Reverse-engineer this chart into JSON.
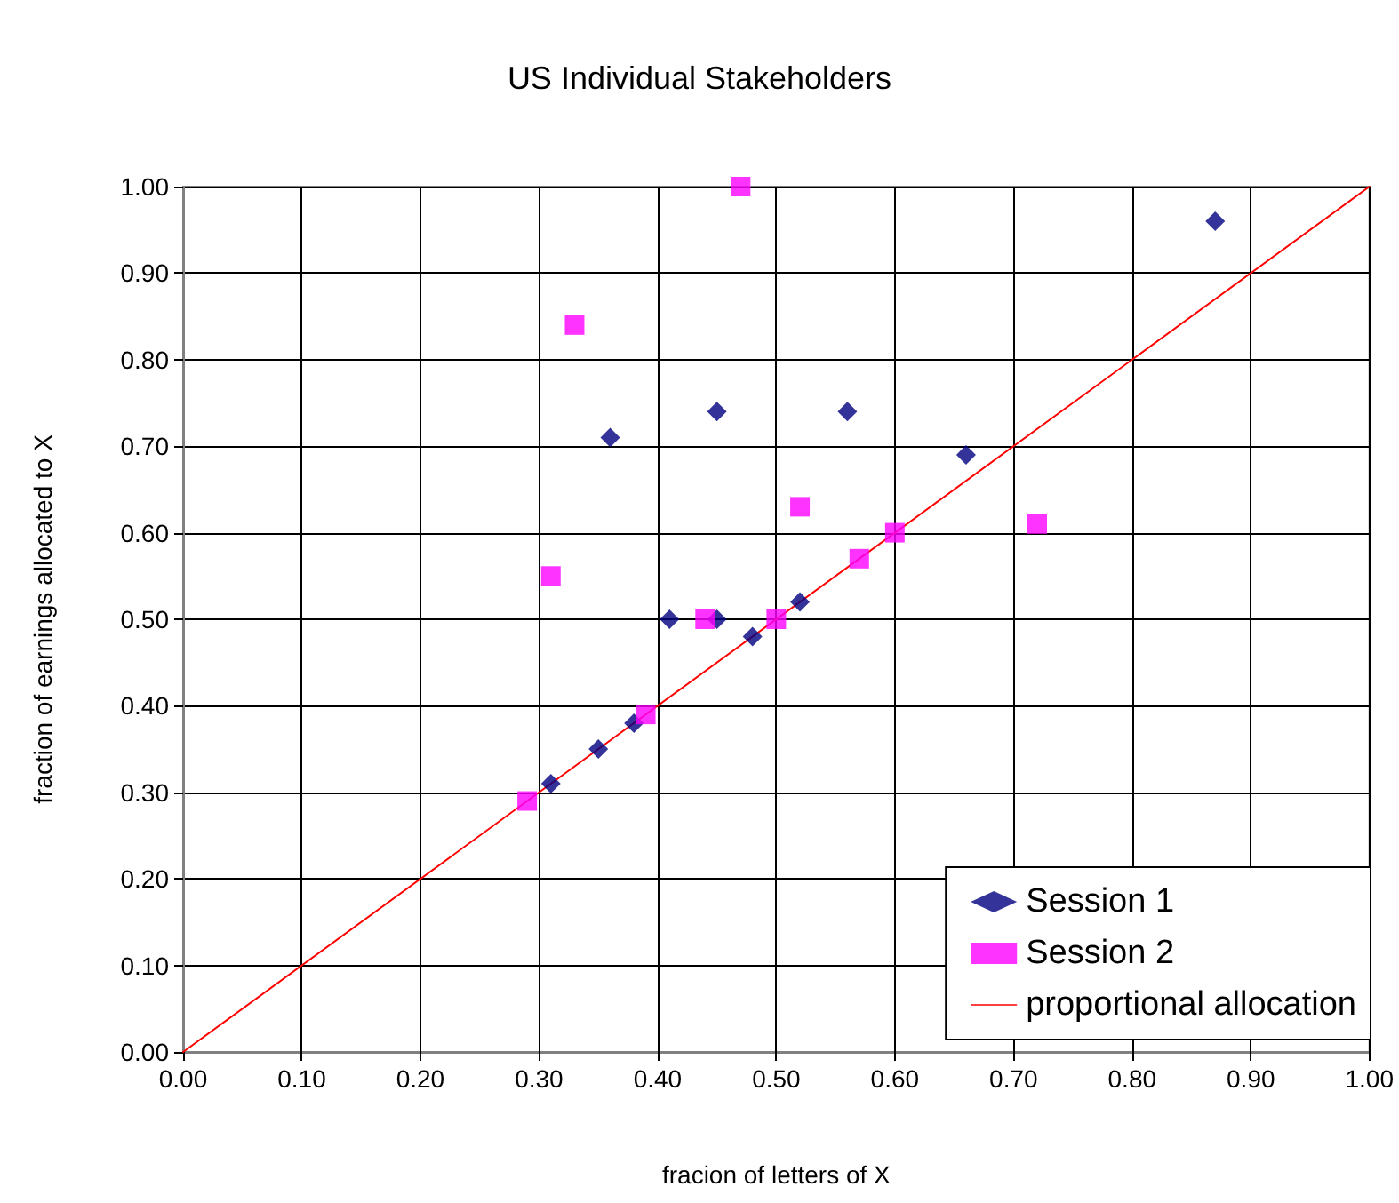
{
  "chart_data": {
    "type": "scatter",
    "title": "US Individual Stakeholders",
    "xlabel": "fracion of letters of X",
    "ylabel": "fraction of earnings allocated to X",
    "series": [
      {
        "name": "Session 1",
        "color": "#000080",
        "marker": "diamond",
        "x": [
          0.31,
          0.35,
          0.38,
          0.41,
          0.45,
          0.48,
          0.52,
          0.36,
          0.45,
          0.56,
          0.66,
          0.87
        ],
        "values": [
          0.31,
          0.35,
          0.38,
          0.5,
          0.5,
          0.48,
          0.52,
          0.71,
          0.74,
          0.74,
          0.69,
          0.96
        ]
      },
      {
        "name": "Session 2",
        "color": "#ff00ff",
        "marker": "square",
        "x": [
          0.29,
          0.31,
          0.39,
          0.44,
          0.5,
          0.57,
          0.47,
          0.33,
          0.52,
          0.6,
          0.72
        ],
        "values": [
          0.29,
          0.55,
          0.39,
          0.5,
          0.5,
          0.57,
          1.0,
          0.84,
          0.63,
          0.6,
          0.61
        ]
      },
      {
        "name": "proportional allocation",
        "type": "line",
        "color": "#ff0000",
        "marker": "none",
        "line_style": "solid",
        "x": [
          0,
          1
        ],
        "values": [
          0,
          1
        ]
      }
    ],
    "xlim": [
      0,
      1
    ],
    "ylim": [
      0,
      1
    ],
    "xticks": [
      {
        "value": 0,
        "label": "0.00"
      },
      {
        "value": 0.1,
        "label": "0.10"
      },
      {
        "value": 0.2,
        "label": "0.20"
      },
      {
        "value": 0.3,
        "label": "0.30"
      },
      {
        "value": 0.4,
        "label": "0.40"
      },
      {
        "value": 0.5,
        "label": "0.50"
      },
      {
        "value": 0.6,
        "label": "0.60"
      },
      {
        "value": 0.7,
        "label": "0.70"
      },
      {
        "value": 0.8,
        "label": "0.80"
      },
      {
        "value": 0.9,
        "label": "0.90"
      },
      {
        "value": 1,
        "label": "1.00"
      }
    ],
    "yticks": [
      {
        "value": 0,
        "label": "0.00"
      },
      {
        "value": 0.1,
        "label": "0.10"
      },
      {
        "value": 0.2,
        "label": "0.20"
      },
      {
        "value": 0.3,
        "label": "0.30"
      },
      {
        "value": 0.4,
        "label": "0.40"
      },
      {
        "value": 0.5,
        "label": "0.50"
      },
      {
        "value": 0.6,
        "label": "0.60"
      },
      {
        "value": 0.7,
        "label": "0.70"
      },
      {
        "value": 0.8,
        "label": "0.80"
      },
      {
        "value": 0.9,
        "label": "0.90"
      },
      {
        "value": 1,
        "label": "1.00"
      }
    ],
    "grid": true,
    "legend": "bottom right"
  }
}
